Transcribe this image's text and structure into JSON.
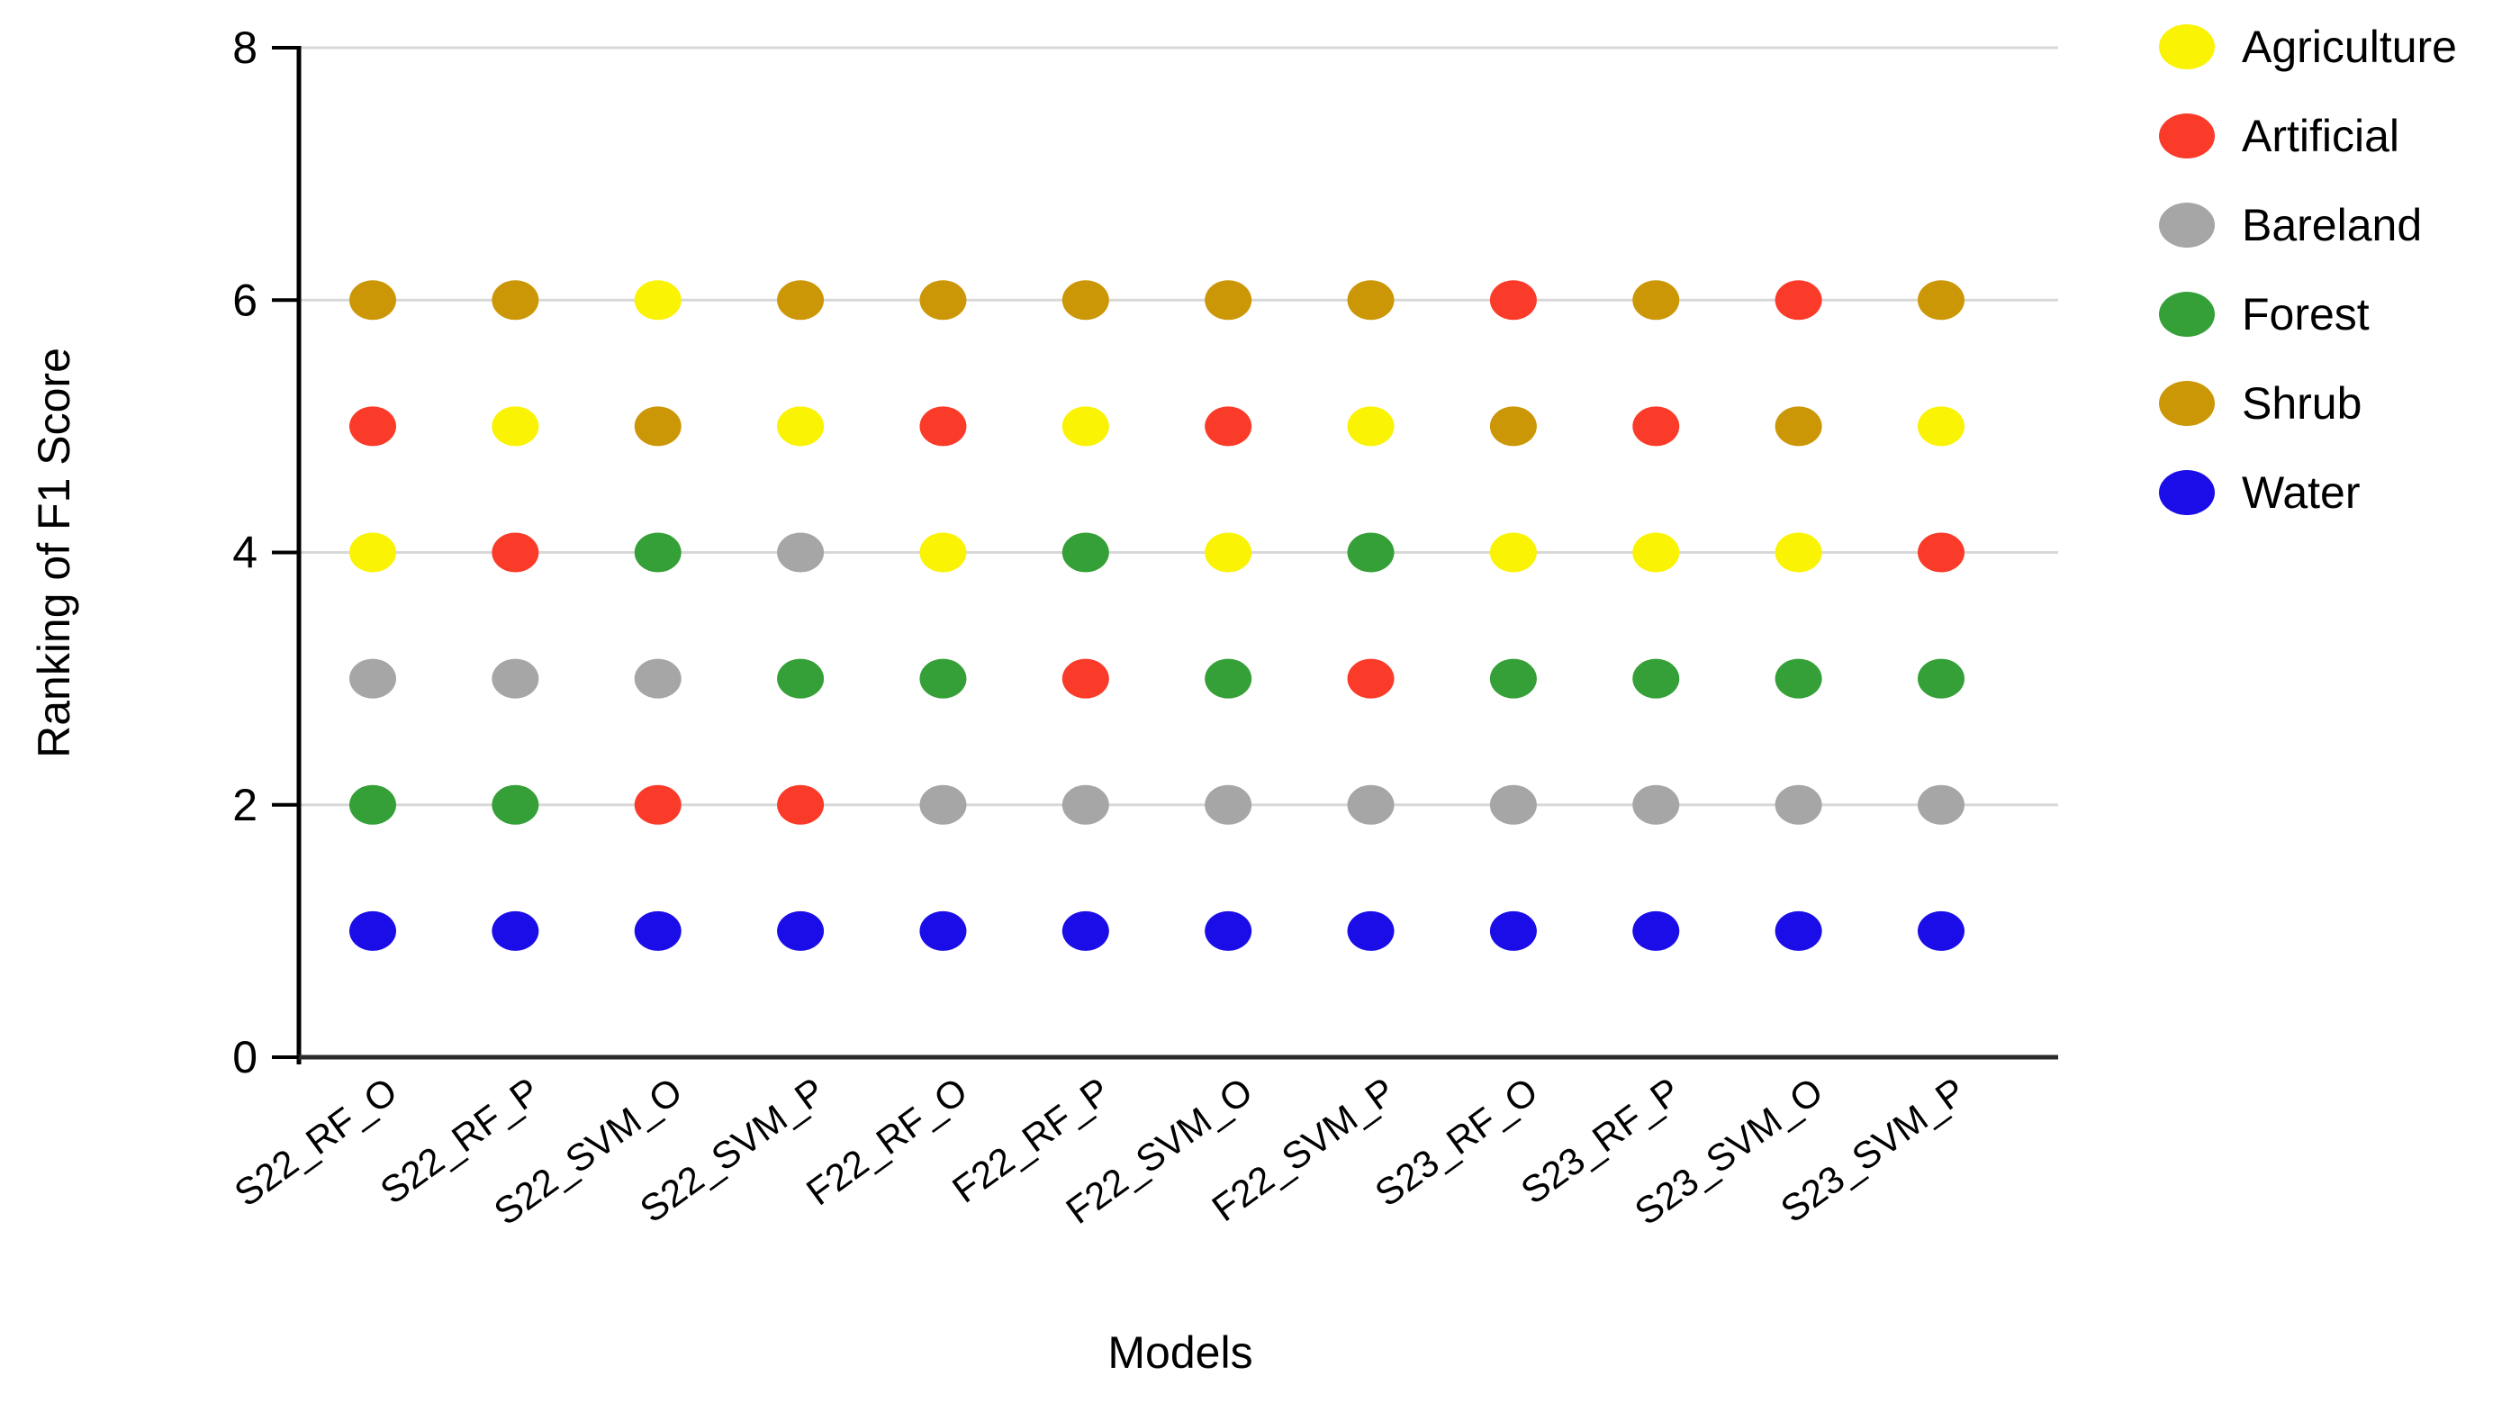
{
  "chart_data": {
    "type": "scatter",
    "title": "",
    "xlabel": "Models",
    "ylabel": "Ranking of F1 Score",
    "ylim": [
      0,
      8
    ],
    "yticks": [
      0,
      2,
      4,
      6,
      8
    ],
    "grid": "horizontal-light-gray",
    "legend_position": "top-right-outside",
    "categories": [
      "S22_RF_O",
      "S22_RF_P",
      "S22_SVM_O",
      "S22_SVM_P",
      "F22_RF_O",
      "F22_RF_P",
      "F22_SVM_O",
      "F22_SVM_P",
      "S23_RF_O",
      "S23_RF_P",
      "S23_SVM_O",
      "S23_SVM_P"
    ],
    "series": [
      {
        "name": "Agriculture",
        "color": "#FAF303",
        "values": [
          4,
          5,
          6,
          5,
          4,
          5,
          4,
          5,
          4,
          4,
          4,
          5
        ]
      },
      {
        "name": "Artificial",
        "color": "#FB3B29",
        "values": [
          5,
          4,
          2,
          2,
          5,
          3,
          5,
          3,
          6,
          5,
          6,
          4
        ]
      },
      {
        "name": "Bareland",
        "color": "#A6A6A6",
        "values": [
          3,
          3,
          3,
          4,
          2,
          2,
          2,
          2,
          2,
          2,
          2,
          2
        ]
      },
      {
        "name": "Forest",
        "color": "#35A037",
        "values": [
          2,
          2,
          4,
          3,
          3,
          4,
          3,
          4,
          3,
          3,
          3,
          3
        ]
      },
      {
        "name": "Shrub",
        "color": "#CC9706",
        "values": [
          6,
          6,
          5,
          6,
          6,
          6,
          6,
          6,
          5,
          6,
          5,
          6
        ]
      },
      {
        "name": "Water",
        "color": "#1A0DE8",
        "values": [
          1,
          1,
          1,
          1,
          1,
          1,
          1,
          1,
          1,
          1,
          1,
          1
        ]
      }
    ],
    "styles": {
      "gridline_color": "#D8D8D8",
      "axis_color": "#000000",
      "bottom_axis_color": "#2B2B2B"
    }
  }
}
